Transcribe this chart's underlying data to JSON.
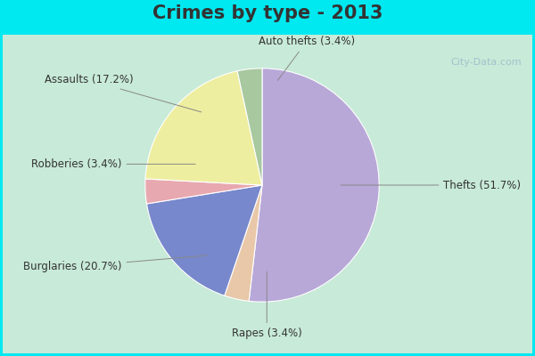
{
  "title": "Crimes by type - 2013",
  "title_fontsize": 15,
  "slices": [
    {
      "label": "Thefts (51.7%)",
      "value": 51.7,
      "color": "#b8a8d8"
    },
    {
      "label": "Auto thefts (3.4%)",
      "value": 3.4,
      "color": "#e8c8a8"
    },
    {
      "label": "Assaults (17.2%)",
      "value": 17.2,
      "color": "#7788cc"
    },
    {
      "label": "Robberies (3.4%)",
      "value": 3.4,
      "color": "#e8a8b0"
    },
    {
      "label": "Burglaries (20.7%)",
      "value": 20.7,
      "color": "#eeeea0"
    },
    {
      "label": "Rapes (3.4%)",
      "value": 3.4,
      "color": "#a8c8a0"
    }
  ],
  "bg_cyan": "#00e8f0",
  "bg_inner": "#c8ead8",
  "watermark": "City-Data.com",
  "label_fontsize": 8.5,
  "title_color": "#333333"
}
